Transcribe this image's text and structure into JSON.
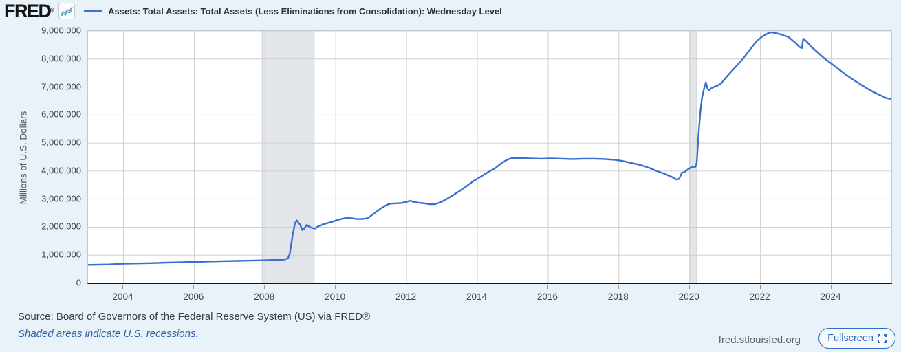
{
  "header": {
    "logo_text": "FRED",
    "registered_mark": "®",
    "series_title": "Assets: Total Assets: Total Assets (Less Eliminations from Consolidation): Wednesday Level"
  },
  "footer": {
    "source_text": "Source: Board of Governors of the Federal Reserve System (US) via FRED®",
    "recession_note": "Shaded areas indicate U.S. recessions.",
    "site_url": "fred.stlouisfed.org",
    "fullscreen_label": "Fullscreen"
  },
  "colors": {
    "page_background": "#e9f1f9",
    "line": "#3a6fd1",
    "recession_band": "#e3e6e9",
    "recession_band_border": "#c9cdd1",
    "gridline": "#cfcfcf",
    "axis_line": "#141414",
    "plot_border": "#c9c9c9",
    "tick_text": "#444444",
    "link_blue": "#2a6ecb",
    "logo_icon_teal": "#53b8a7",
    "logo_icon_blue": "#5b8ed6"
  },
  "chart_data": {
    "type": "line",
    "title": "Assets: Total Assets: Total Assets (Less Eliminations from Consolidation): Wednesday Level",
    "xlabel": "",
    "ylabel": "Millions of U.S. Dollars",
    "unit": "Millions of U.S. Dollars",
    "frequency_hint": "weekly (Wednesday level)",
    "grid": true,
    "xlim": [
      2003.0,
      2025.7
    ],
    "ylim": [
      0,
      9000000
    ],
    "x_ticks": [
      2004,
      2006,
      2008,
      2010,
      2012,
      2014,
      2016,
      2018,
      2020,
      2022,
      2024
    ],
    "y_ticks": [
      {
        "value": 0,
        "label": "0"
      },
      {
        "value": 1000000,
        "label": "1,000,000"
      },
      {
        "value": 2000000,
        "label": "2,000,000"
      },
      {
        "value": 3000000,
        "label": "3,000,000"
      },
      {
        "value": 4000000,
        "label": "4,000,000"
      },
      {
        "value": 5000000,
        "label": "5,000,000"
      },
      {
        "value": 6000000,
        "label": "6,000,000"
      },
      {
        "value": 7000000,
        "label": "7,000,000"
      },
      {
        "value": 8000000,
        "label": "8,000,000"
      },
      {
        "value": 9000000,
        "label": "9,000,000"
      }
    ],
    "recessions": [
      {
        "start": 2007.92,
        "end": 2009.39
      },
      {
        "start": 2020.0,
        "end": 2020.2
      }
    ],
    "series": [
      {
        "name": "Assets: Total Assets: Total Assets (Less Eliminations from Consolidation): Wednesday Level",
        "color": "#3a6fd1",
        "points": [
          [
            2003.0,
            655000
          ],
          [
            2003.3,
            662000
          ],
          [
            2003.6,
            670000
          ],
          [
            2004.0,
            700000
          ],
          [
            2004.4,
            706000
          ],
          [
            2004.8,
            716000
          ],
          [
            2005.2,
            735000
          ],
          [
            2005.6,
            745000
          ],
          [
            2006.0,
            760000
          ],
          [
            2006.4,
            775000
          ],
          [
            2006.8,
            786000
          ],
          [
            2007.2,
            796000
          ],
          [
            2007.6,
            806000
          ],
          [
            2008.0,
            820000
          ],
          [
            2008.3,
            832000
          ],
          [
            2008.55,
            846000
          ],
          [
            2008.65,
            890000
          ],
          [
            2008.7,
            1050000
          ],
          [
            2008.78,
            1700000
          ],
          [
            2008.85,
            2150000
          ],
          [
            2008.9,
            2240000
          ],
          [
            2008.95,
            2150000
          ],
          [
            2009.0,
            2080000
          ],
          [
            2009.05,
            1900000
          ],
          [
            2009.1,
            1930000
          ],
          [
            2009.18,
            2080000
          ],
          [
            2009.25,
            2020000
          ],
          [
            2009.33,
            1970000
          ],
          [
            2009.42,
            1950000
          ],
          [
            2009.5,
            2030000
          ],
          [
            2009.6,
            2080000
          ],
          [
            2009.75,
            2140000
          ],
          [
            2009.9,
            2190000
          ],
          [
            2010.0,
            2240000
          ],
          [
            2010.15,
            2290000
          ],
          [
            2010.3,
            2330000
          ],
          [
            2010.45,
            2320000
          ],
          [
            2010.6,
            2290000
          ],
          [
            2010.75,
            2290000
          ],
          [
            2010.9,
            2320000
          ],
          [
            2011.0,
            2410000
          ],
          [
            2011.15,
            2550000
          ],
          [
            2011.3,
            2690000
          ],
          [
            2011.45,
            2800000
          ],
          [
            2011.55,
            2840000
          ],
          [
            2011.7,
            2850000
          ],
          [
            2011.85,
            2860000
          ],
          [
            2012.0,
            2900000
          ],
          [
            2012.1,
            2940000
          ],
          [
            2012.2,
            2900000
          ],
          [
            2012.35,
            2870000
          ],
          [
            2012.5,
            2850000
          ],
          [
            2012.65,
            2820000
          ],
          [
            2012.8,
            2820000
          ],
          [
            2012.95,
            2880000
          ],
          [
            2013.1,
            2980000
          ],
          [
            2013.3,
            3130000
          ],
          [
            2013.5,
            3290000
          ],
          [
            2013.7,
            3470000
          ],
          [
            2013.9,
            3650000
          ],
          [
            2014.1,
            3800000
          ],
          [
            2014.3,
            3960000
          ],
          [
            2014.5,
            4100000
          ],
          [
            2014.7,
            4300000
          ],
          [
            2014.85,
            4410000
          ],
          [
            2015.0,
            4470000
          ],
          [
            2015.2,
            4460000
          ],
          [
            2015.5,
            4450000
          ],
          [
            2015.8,
            4440000
          ],
          [
            2016.1,
            4450000
          ],
          [
            2016.4,
            4440000
          ],
          [
            2016.7,
            4430000
          ],
          [
            2017.0,
            4440000
          ],
          [
            2017.3,
            4440000
          ],
          [
            2017.6,
            4430000
          ],
          [
            2017.9,
            4400000
          ],
          [
            2018.1,
            4360000
          ],
          [
            2018.35,
            4290000
          ],
          [
            2018.6,
            4220000
          ],
          [
            2018.85,
            4120000
          ],
          [
            2019.1,
            3990000
          ],
          [
            2019.3,
            3900000
          ],
          [
            2019.5,
            3790000
          ],
          [
            2019.62,
            3700000
          ],
          [
            2019.7,
            3720000
          ],
          [
            2019.78,
            3940000
          ],
          [
            2019.85,
            3960000
          ],
          [
            2019.95,
            4060000
          ],
          [
            2020.05,
            4140000
          ],
          [
            2020.1,
            4160000
          ],
          [
            2020.16,
            4150000
          ],
          [
            2020.2,
            4290000
          ],
          [
            2020.25,
            5300000
          ],
          [
            2020.3,
            6080000
          ],
          [
            2020.35,
            6620000
          ],
          [
            2020.42,
            7010000
          ],
          [
            2020.46,
            7170000
          ],
          [
            2020.5,
            6950000
          ],
          [
            2020.55,
            6890000
          ],
          [
            2020.62,
            6960000
          ],
          [
            2020.7,
            7010000
          ],
          [
            2020.8,
            7060000
          ],
          [
            2020.9,
            7140000
          ],
          [
            2021.0,
            7300000
          ],
          [
            2021.15,
            7520000
          ],
          [
            2021.3,
            7720000
          ],
          [
            2021.5,
            8000000
          ],
          [
            2021.7,
            8330000
          ],
          [
            2021.9,
            8650000
          ],
          [
            2022.05,
            8800000
          ],
          [
            2022.2,
            8910000
          ],
          [
            2022.3,
            8950000
          ],
          [
            2022.45,
            8920000
          ],
          [
            2022.6,
            8870000
          ],
          [
            2022.8,
            8780000
          ],
          [
            2023.0,
            8560000
          ],
          [
            2023.1,
            8430000
          ],
          [
            2023.17,
            8390000
          ],
          [
            2023.21,
            8730000
          ],
          [
            2023.3,
            8630000
          ],
          [
            2023.45,
            8420000
          ],
          [
            2023.6,
            8260000
          ],
          [
            2023.8,
            8030000
          ],
          [
            2024.0,
            7840000
          ],
          [
            2024.2,
            7650000
          ],
          [
            2024.4,
            7450000
          ],
          [
            2024.6,
            7280000
          ],
          [
            2024.8,
            7120000
          ],
          [
            2025.0,
            6960000
          ],
          [
            2025.2,
            6820000
          ],
          [
            2025.4,
            6700000
          ],
          [
            2025.55,
            6610000
          ],
          [
            2025.7,
            6570000
          ]
        ]
      }
    ]
  }
}
